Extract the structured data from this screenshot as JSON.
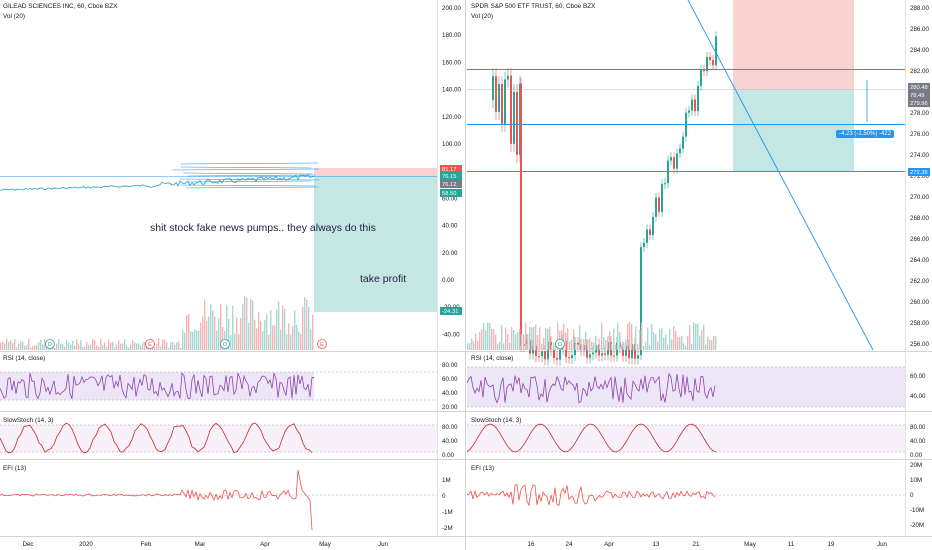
{
  "left_chart": {
    "title": "GILEAD SCIENCES INC, 60, Cboe BZX",
    "vol_label": "Vol (20)",
    "price_ticks": [
      "200.00",
      "180.00",
      "160.00",
      "140.00",
      "120.00",
      "100.00",
      "80.00",
      "60.00",
      "40.00",
      "20.00",
      "0.00",
      "-20.00",
      "-40.00"
    ],
    "price_tags": [
      {
        "text": "81.17",
        "color": "#ef5350"
      },
      {
        "text": "76.15",
        "color": "#26a69a"
      },
      {
        "text": "76.12",
        "color": "#787b86"
      },
      {
        "text": "58.50",
        "color": "#26a69a"
      },
      {
        "text": "-24.31",
        "color": "#26a69a"
      }
    ],
    "annotations": {
      "main": "shit stock fake news pumps.. they always do this",
      "profit": "take profit"
    },
    "events": [
      "D",
      "E",
      "D",
      "E"
    ],
    "rsi": {
      "label": "RSI (14, close)",
      "ticks": [
        "80.00",
        "60.00",
        "40.00",
        "20.00"
      ]
    },
    "stoch": {
      "label": "SlowStoch (14, 3)",
      "ticks": [
        "80.00",
        "40.00",
        "0.00"
      ]
    },
    "efi": {
      "label": "EFI (13)",
      "ticks": [
        "1M",
        "0",
        "-1M",
        "-2M"
      ]
    },
    "time_ticks": [
      "Dec",
      "2020",
      "Feb",
      "Mar",
      "Apr",
      "May",
      "Jun"
    ]
  },
  "right_chart": {
    "title": "SPDR S&P 500 ETF TRUST, 60, Cboe BZX",
    "vol_label": "Vol (20)",
    "price_ticks": [
      "288.00",
      "286.00",
      "284.00",
      "282.00",
      "280.00",
      "278.00",
      "276.00",
      "274.00",
      "272.00",
      "270.00",
      "268.00",
      "266.00",
      "264.00",
      "262.00",
      "260.00",
      "258.00",
      "256.00"
    ],
    "price_tags": [
      {
        "text": "280.48",
        "color": "#787b86"
      },
      {
        "text": "78.49",
        "color": "#787b86"
      },
      {
        "text": "279.96",
        "color": "#787b86"
      },
      {
        "text": "272.36",
        "color": "#2196f3"
      }
    ],
    "measure": "-4.23 (-1.50%) -422",
    "events": [
      "D"
    ],
    "rsi": {
      "label": "RSI (14, close)",
      "ticks": [
        "60.00",
        "40.00"
      ]
    },
    "stoch": {
      "label": "SlowStoch (14, 3)",
      "ticks": [
        "80.00",
        "40.00",
        "0.00"
      ]
    },
    "efi": {
      "label": "EFI (13)",
      "ticks": [
        "20M",
        "10M",
        "0",
        "-10M",
        "-20M"
      ]
    },
    "time_ticks": [
      "16",
      "24",
      "Apr",
      "13",
      "21",
      "May",
      "11",
      "19",
      "Jun"
    ]
  },
  "colors": {
    "up": "#26a69a",
    "down": "#ef5350",
    "line": "#2196f3",
    "rsi": "#7e57c2"
  }
}
